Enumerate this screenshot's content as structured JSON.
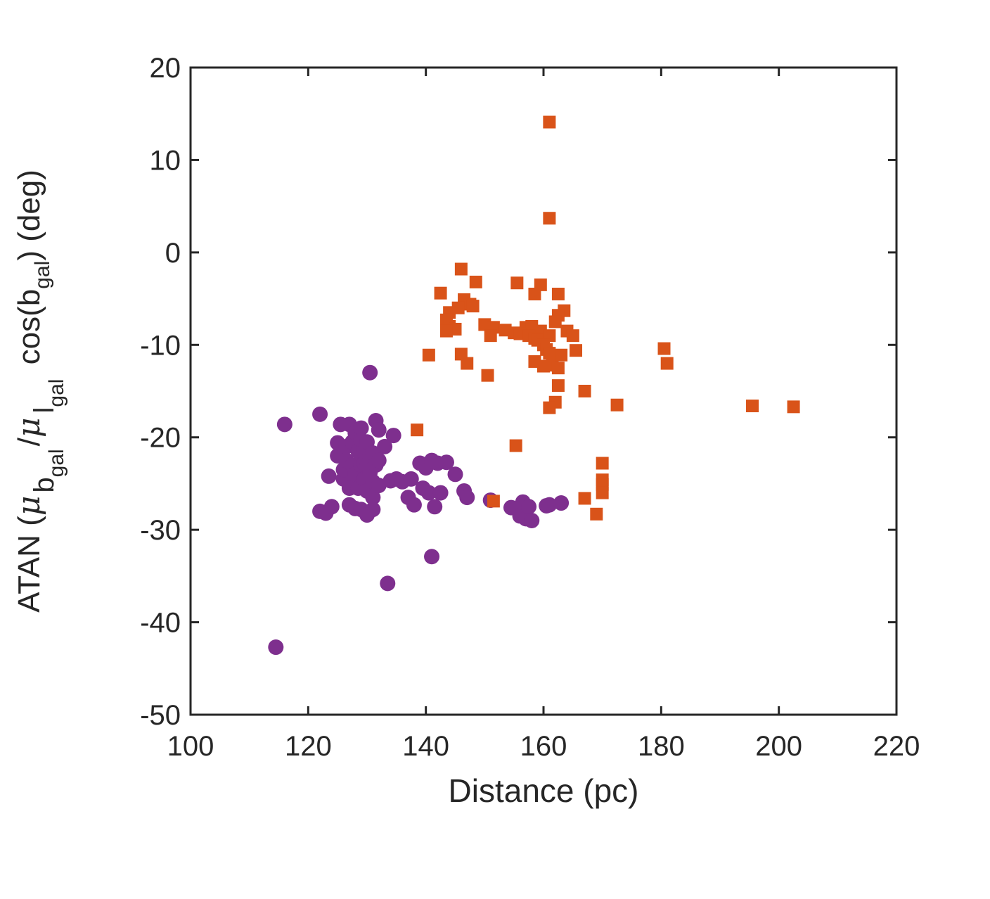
{
  "chart_data": {
    "type": "scatter",
    "xlabel": "Distance (pc)",
    "ylabel": {
      "prefix": "ATAN (",
      "mu1": "μ",
      "sub1": "b",
      "subsub1": "gal",
      "slash": "/",
      "mu2": "μ",
      "sub2": "l",
      "subsub2": "gal",
      "cos": " cos(b",
      "cos_sub": "gal",
      "suffix": ")  (deg)"
    },
    "xlim": [
      100,
      220
    ],
    "ylim": [
      -50,
      20
    ],
    "xticks": [
      "100",
      "120",
      "140",
      "160",
      "180",
      "200",
      "220"
    ],
    "yticks": [
      "20",
      "10",
      "0",
      "-10",
      "-20",
      "-30",
      "-40",
      "-50"
    ],
    "colors": {
      "purple": "#7e2f8e",
      "orange": "#d95319",
      "axis": "#262626"
    },
    "series": [
      {
        "marker": "circle",
        "color": "#7e2f8e",
        "points": [
          [
            114.5,
            -42.7
          ],
          [
            116,
            -18.6
          ],
          [
            122,
            -17.5
          ],
          [
            122,
            -28
          ],
          [
            123,
            -28.2
          ],
          [
            123.5,
            -24.2
          ],
          [
            124,
            -27.5
          ],
          [
            125,
            -22
          ],
          [
            125,
            -20.6
          ],
          [
            125.5,
            -18.6
          ],
          [
            126,
            -24.5
          ],
          [
            126,
            -23.5
          ],
          [
            126.5,
            -22.5
          ],
          [
            126.5,
            -21
          ],
          [
            127,
            -18.6
          ],
          [
            127,
            -25.5
          ],
          [
            127,
            -27.3
          ],
          [
            127.5,
            -20.5
          ],
          [
            127.5,
            -23
          ],
          [
            128,
            -19.5
          ],
          [
            128,
            -24
          ],
          [
            128,
            -27.7
          ],
          [
            128.5,
            -21.5
          ],
          [
            128.5,
            -25.5
          ],
          [
            129,
            -19
          ],
          [
            129,
            -23
          ],
          [
            129,
            -20.3
          ],
          [
            129,
            -27.8
          ],
          [
            129.5,
            -22.8
          ],
          [
            129.5,
            -24.5
          ],
          [
            129.5,
            -21.5
          ],
          [
            130,
            -23
          ],
          [
            130,
            -25.8
          ],
          [
            130,
            -28.4
          ],
          [
            130,
            -20.5
          ],
          [
            130.5,
            -23.8
          ],
          [
            130.5,
            -22
          ],
          [
            130.5,
            -13
          ],
          [
            131,
            -24.8
          ],
          [
            131,
            -26.5
          ],
          [
            131,
            -27.8
          ],
          [
            131,
            -21.7
          ],
          [
            131.5,
            -18.2
          ],
          [
            131.5,
            -23
          ],
          [
            132,
            -19.2
          ],
          [
            132,
            -25.2
          ],
          [
            132,
            -22.5
          ],
          [
            133,
            -21
          ],
          [
            134,
            -24.7
          ],
          [
            134.5,
            -19.8
          ],
          [
            135,
            -24.5
          ],
          [
            136,
            -24.8
          ],
          [
            133.5,
            -35.8
          ],
          [
            137,
            -26.5
          ],
          [
            137.5,
            -24.5
          ],
          [
            138,
            -27.3
          ],
          [
            139,
            -22.8
          ],
          [
            139.5,
            -25.5
          ],
          [
            140,
            -23.3
          ],
          [
            141,
            -22.5
          ],
          [
            140.5,
            -26
          ],
          [
            141,
            -32.9
          ],
          [
            141.5,
            -27.5
          ],
          [
            142,
            -22.8
          ],
          [
            142.5,
            -26
          ],
          [
            143.5,
            -22.7
          ],
          [
            145,
            -24
          ],
          [
            146.5,
            -25.8
          ],
          [
            147,
            -26.5
          ],
          [
            151,
            -26.8
          ],
          [
            154.5,
            -27.6
          ],
          [
            156,
            -28.5
          ],
          [
            156.5,
            -27
          ],
          [
            157,
            -28.8
          ],
          [
            157.5,
            -27.5
          ],
          [
            158,
            -29
          ],
          [
            160.5,
            -27.4
          ],
          [
            161,
            -27.3
          ],
          [
            163,
            -27.1
          ]
        ]
      },
      {
        "marker": "square",
        "color": "#d95319",
        "points": [
          [
            161,
            14.1
          ],
          [
            161,
            3.7
          ],
          [
            146,
            -1.8
          ],
          [
            148.5,
            -3.2
          ],
          [
            155.5,
            -3.3
          ],
          [
            159.5,
            -3.5
          ],
          [
            142.5,
            -4.4
          ],
          [
            158.5,
            -4.5
          ],
          [
            162.5,
            -4.5
          ],
          [
            146.5,
            -5.1
          ],
          [
            147.5,
            -5.6
          ],
          [
            148,
            -5.8
          ],
          [
            145.5,
            -6
          ],
          [
            144,
            -6.5
          ],
          [
            163.5,
            -6.3
          ],
          [
            162.5,
            -6.8
          ],
          [
            143.5,
            -7.3
          ],
          [
            162,
            -7.5
          ],
          [
            150,
            -7.8
          ],
          [
            151.5,
            -8.1
          ],
          [
            144,
            -8
          ],
          [
            145,
            -8.3
          ],
          [
            143.5,
            -8.5
          ],
          [
            153.5,
            -8.4
          ],
          [
            157,
            -8.1
          ],
          [
            158,
            -8
          ],
          [
            159.5,
            -8.5
          ],
          [
            164,
            -8.5
          ],
          [
            155,
            -8.7
          ],
          [
            156,
            -8.8
          ],
          [
            157.5,
            -9
          ],
          [
            151,
            -9
          ],
          [
            158.5,
            -9.3
          ],
          [
            159,
            -9.5
          ],
          [
            161,
            -9
          ],
          [
            165,
            -9
          ],
          [
            160,
            -10
          ],
          [
            160.5,
            -10.5
          ],
          [
            161,
            -10.9
          ],
          [
            165.5,
            -10.6
          ],
          [
            140.5,
            -11.1
          ],
          [
            146,
            -11
          ],
          [
            147,
            -12
          ],
          [
            158.5,
            -11.8
          ],
          [
            160,
            -12.3
          ],
          [
            161.5,
            -12.2
          ],
          [
            162.5,
            -12.5
          ],
          [
            163,
            -11.1
          ],
          [
            180.5,
            -10.4
          ],
          [
            181,
            -12
          ],
          [
            150.5,
            -13.3
          ],
          [
            162.5,
            -14.4
          ],
          [
            167,
            -15
          ],
          [
            172.5,
            -16.5
          ],
          [
            162,
            -16.2
          ],
          [
            161,
            -16.8
          ],
          [
            195.5,
            -16.6
          ],
          [
            202.5,
            -16.7
          ],
          [
            138.5,
            -19.2
          ],
          [
            155.3,
            -20.9
          ],
          [
            151.5,
            -26.9
          ],
          [
            167,
            -26.6
          ],
          [
            170,
            -22.8
          ],
          [
            170,
            -24.6
          ],
          [
            170,
            -25.1
          ],
          [
            170,
            -26
          ],
          [
            169,
            -28.3
          ]
        ]
      }
    ]
  }
}
